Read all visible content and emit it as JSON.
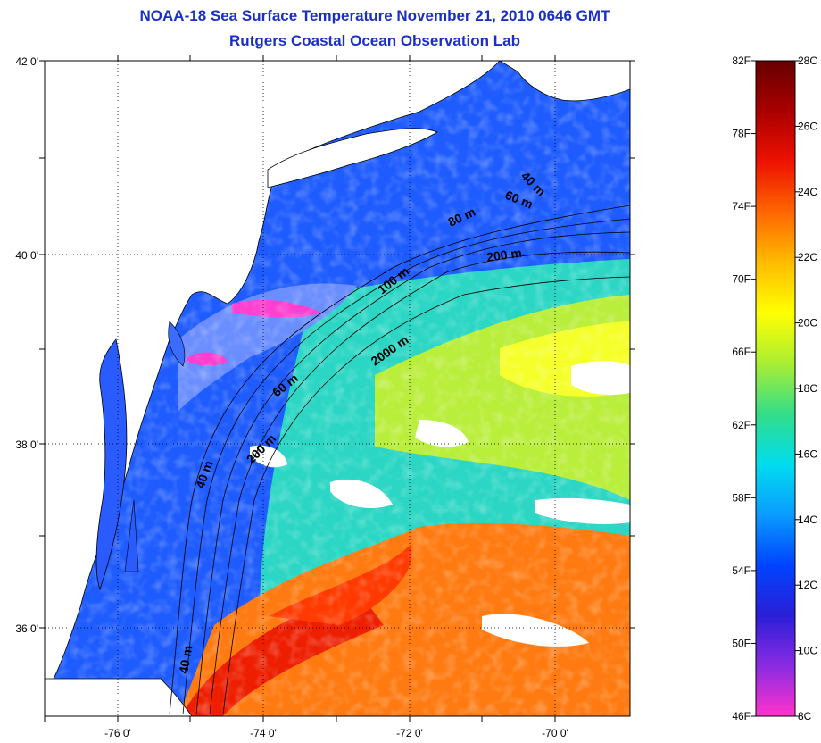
{
  "header": {
    "title": "NOAA-18 Sea Surface Temperature November 21, 2010 0646 GMT",
    "subtitle": "Rutgers Coastal Ocean Observation Lab"
  },
  "map": {
    "lat_labels": [
      {
        "lat": 42,
        "label": "42 0'"
      },
      {
        "lat": 40,
        "label": "40 0'"
      },
      {
        "lat": 38,
        "label": "38 0'"
      },
      {
        "lat": 36,
        "label": "36 0'"
      }
    ],
    "lon_labels": [
      {
        "lon": -76,
        "label": "-76 0'"
      },
      {
        "lon": -74,
        "label": "-74 0'"
      },
      {
        "lon": -72,
        "label": "-72 0'"
      },
      {
        "lon": -70,
        "label": "-70 0'"
      }
    ],
    "depth_labels": [
      "40 m",
      "60 m",
      "80 m",
      "200 m",
      "100 m",
      "2000 m",
      "60 m",
      "200 m",
      "40 m",
      "40 m"
    ]
  },
  "colorbar": {
    "fahrenheit_labels": [
      "82F",
      "78F",
      "74F",
      "70F",
      "66F",
      "62F",
      "58F",
      "54F",
      "50F",
      "46F"
    ],
    "celsius_labels": [
      "28C",
      "26C",
      "24C",
      "22C",
      "20C",
      "18C",
      "16C",
      "14C",
      "12C",
      "10C",
      "8C"
    ],
    "colors": [
      "#ff33cc",
      "#8a2be2",
      "#2a1fd8",
      "#0044ff",
      "#0a9cff",
      "#00ddee",
      "#33dd88",
      "#aaee33",
      "#ffff00",
      "#ffbb00",
      "#ff6600",
      "#ee1100",
      "#aa0000",
      "#660000"
    ]
  }
}
